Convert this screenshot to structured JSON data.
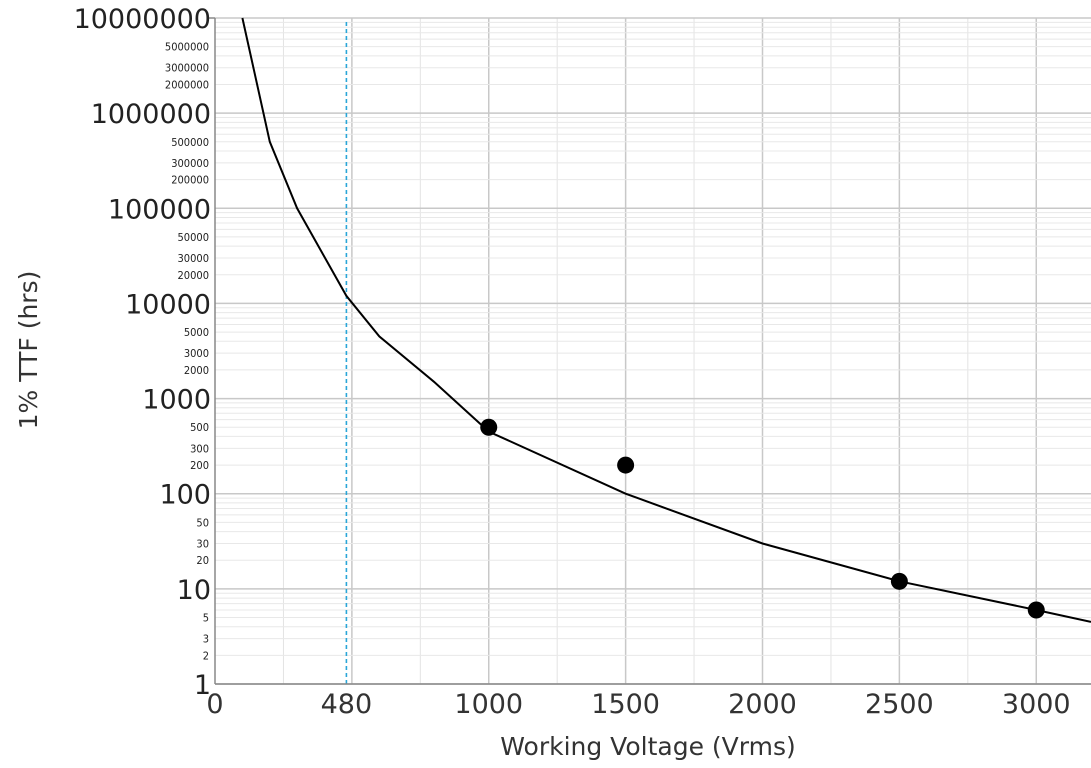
{
  "chart_data": {
    "type": "line",
    "xlabel": "Working Voltage (Vrms)",
    "ylabel": "1% TTF (hrs)",
    "xlim": [
      0,
      3200
    ],
    "ylim": [
      1,
      10000000
    ],
    "yscale": "log",
    "grid": true,
    "x_ticks": [
      "0",
      "1000",
      "1500",
      "2000",
      "2500",
      "3000"
    ],
    "y_major_ticks": [
      "1",
      "10",
      "100",
      "1000",
      "10000",
      "100000",
      "1000000",
      "10000000"
    ],
    "y_minor_tick_labels": [
      "2",
      "3",
      "5",
      "20",
      "30",
      "50",
      "200",
      "300",
      "500",
      "2000",
      "3000",
      "5000",
      "20000",
      "30000",
      "50000",
      "200000",
      "300000",
      "500000",
      "2000000",
      "3000000",
      "5000000"
    ],
    "reference_line": {
      "x": 480,
      "label": "480",
      "color": "#2aa6d8"
    },
    "series": [
      {
        "kind": "curve",
        "color": "#000000",
        "x": [
          100,
          200,
          300,
          480,
          600,
          800,
          1000,
          1500,
          2000,
          2500,
          3000,
          3200
        ],
        "y": [
          10000000,
          500000,
          100000,
          12000,
          4500,
          1500,
          450,
          100,
          30,
          12,
          6,
          4.5
        ]
      },
      {
        "kind": "points",
        "color": "#000000",
        "x": [
          1000,
          1500,
          2500,
          3000
        ],
        "y": [
          500,
          200,
          12,
          6
        ]
      }
    ]
  }
}
